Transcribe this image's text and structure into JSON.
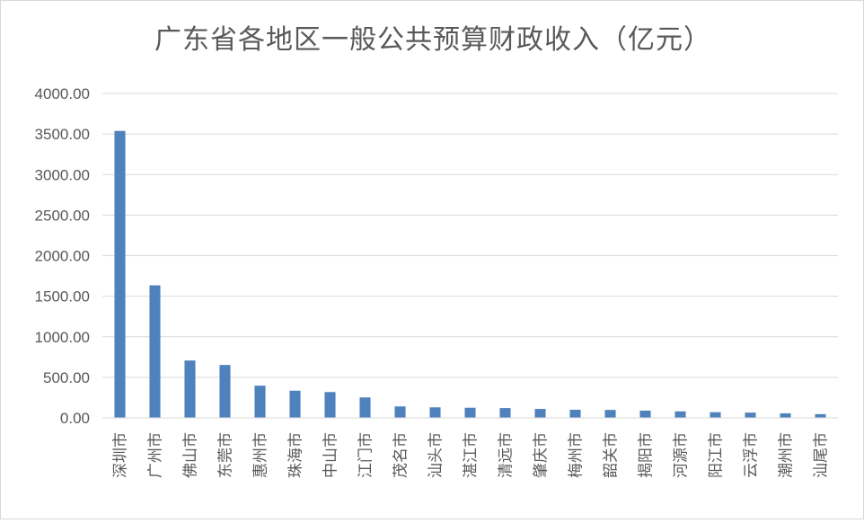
{
  "chart_data": {
    "type": "bar",
    "title": "广东省各地区一般公共预算财政收入（亿元）",
    "xlabel": "",
    "ylabel": "",
    "ylim": [
      0,
      4000
    ],
    "yticks": [
      "0.00",
      "500.00",
      "1000.00",
      "1500.00",
      "2000.00",
      "2500.00",
      "3000.00",
      "3500.00",
      "4000.00"
    ],
    "grid": true,
    "legend": "none",
    "bar_color": "#4f81bd",
    "categories": [
      "深圳市",
      "广州市",
      "佛山市",
      "东莞市",
      "惠州市",
      "珠海市",
      "中山市",
      "江门市",
      "茂名市",
      "汕头市",
      "湛江市",
      "清远市",
      "肇庆市",
      "梅州市",
      "韶关市",
      "揭阳市",
      "河源市",
      "阳江市",
      "云浮市",
      "潮州市",
      "汕尾市"
    ],
    "values": [
      3538,
      1634,
      707,
      652,
      397,
      335,
      318,
      252,
      141,
      130,
      125,
      121,
      110,
      100,
      98,
      89,
      80,
      70,
      65,
      56,
      46
    ]
  }
}
